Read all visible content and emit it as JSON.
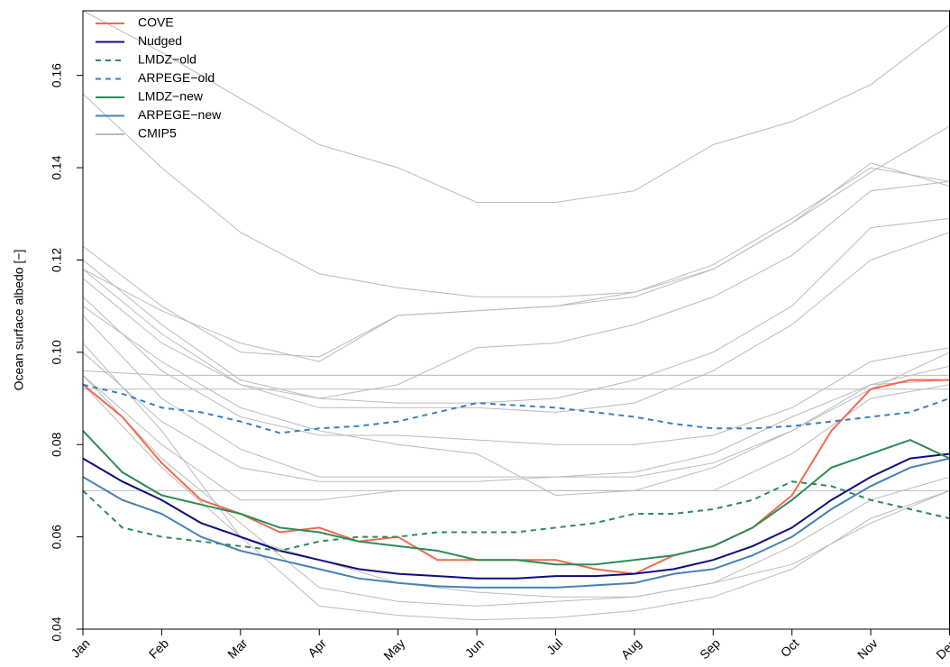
{
  "chart_data": {
    "type": "line",
    "y_label": "Ocean surface albedo [−]",
    "xlim": [
      1,
      12
    ],
    "xticks": [
      {
        "value": 1,
        "label": "Jan"
      },
      {
        "value": 2,
        "label": "Feb"
      },
      {
        "value": 3,
        "label": "Mar"
      },
      {
        "value": 4,
        "label": "Apr"
      },
      {
        "value": 5,
        "label": "May"
      },
      {
        "value": 6,
        "label": "Jun"
      },
      {
        "value": 7,
        "label": "Jul"
      },
      {
        "value": 8,
        "label": "Aug"
      },
      {
        "value": 9,
        "label": "Sep"
      },
      {
        "value": 10,
        "label": "Oct"
      },
      {
        "value": 11,
        "label": "Nov"
      },
      {
        "value": 12,
        "label": "Dec"
      }
    ],
    "ylim": [
      0.04,
      0.174
    ],
    "yticks": [
      0.04,
      0.06,
      0.08,
      {
        "value": 0.1,
        "label": "0.10"
      },
      0.12,
      0.14,
      0.16
    ],
    "legend": "top-left",
    "x": [
      1,
      1.5,
      2,
      2.5,
      3,
      3.5,
      4,
      4.5,
      5,
      5.5,
      6,
      6.5,
      7,
      7.5,
      8,
      8.5,
      9,
      9.5,
      10,
      10.5,
      11,
      11.5,
      12
    ],
    "series": [
      {
        "name": "COVE",
        "color": "#f4694b",
        "dash": false,
        "values": [
          0.093,
          0.086,
          0.076,
          0.068,
          0.065,
          0.061,
          0.062,
          0.059,
          0.06,
          0.055,
          0.055,
          0.055,
          0.055,
          0.053,
          0.052,
          0.056,
          0.058,
          0.062,
          0.069,
          0.083,
          0.092,
          0.094,
          0.094
        ]
      },
      {
        "name": "Nudged",
        "color": "#0d0d80",
        "dash": false,
        "values": [
          0.077,
          0.072,
          0.068,
          0.063,
          0.06,
          0.057,
          0.055,
          0.053,
          0.052,
          0.0515,
          0.051,
          0.051,
          0.0515,
          0.0515,
          0.052,
          0.053,
          0.055,
          0.058,
          0.062,
          0.068,
          0.073,
          0.077,
          0.078
        ]
      },
      {
        "name": "LMDZ−old",
        "color": "#2e8b57",
        "dash": true,
        "values": [
          0.07,
          0.062,
          0.06,
          0.059,
          0.058,
          0.057,
          0.059,
          0.06,
          0.06,
          0.061,
          0.061,
          0.061,
          0.062,
          0.063,
          0.065,
          0.065,
          0.066,
          0.068,
          0.072,
          0.071,
          0.068,
          0.066,
          0.064
        ]
      },
      {
        "name": "ARPEGE−old",
        "color": "#3a7fc0",
        "dash": true,
        "values": [
          0.093,
          0.091,
          0.088,
          0.087,
          0.085,
          0.0825,
          0.0835,
          0.084,
          0.085,
          0.087,
          0.089,
          0.0885,
          0.088,
          0.087,
          0.086,
          0.0845,
          0.0835,
          0.0835,
          0.084,
          0.085,
          0.086,
          0.087,
          0.09
        ]
      },
      {
        "name": "LMDZ−new",
        "color": "#2e8b57",
        "dash": false,
        "values": [
          0.083,
          0.074,
          0.069,
          0.067,
          0.065,
          0.062,
          0.061,
          0.059,
          0.058,
          0.057,
          0.055,
          0.055,
          0.054,
          0.054,
          0.055,
          0.056,
          0.058,
          0.062,
          0.068,
          0.075,
          0.078,
          0.081,
          0.077
        ]
      },
      {
        "name": "ARPEGE−new",
        "color": "#4682b4",
        "dash": false,
        "values": [
          0.073,
          0.068,
          0.065,
          0.06,
          0.057,
          0.055,
          0.053,
          0.051,
          0.05,
          0.0493,
          0.049,
          0.049,
          0.049,
          0.0495,
          0.05,
          0.052,
          0.053,
          0.056,
          0.06,
          0.066,
          0.071,
          0.075,
          0.077
        ]
      }
    ],
    "ensemble": {
      "name": "CMIP5",
      "color": "#bbbbbb",
      "x": [
        1,
        2,
        3,
        4,
        5,
        6,
        7,
        8,
        9,
        10,
        11,
        12
      ],
      "members": [
        [
          0.174,
          0.165,
          0.155,
          0.145,
          0.14,
          0.1325,
          0.1325,
          0.135,
          0.145,
          0.15,
          0.158,
          0.171
        ],
        [
          0.123,
          0.11,
          0.1,
          0.099,
          0.108,
          0.109,
          0.11,
          0.113,
          0.119,
          0.129,
          0.14,
          0.137
        ],
        [
          0.118,
          0.109,
          0.102,
          0.098,
          0.108,
          0.109,
          0.11,
          0.112,
          0.118,
          0.128,
          0.141,
          0.136
        ],
        [
          0.156,
          0.14,
          0.126,
          0.117,
          0.114,
          0.112,
          0.112,
          0.113,
          0.118,
          0.128,
          0.139,
          0.149
        ],
        [
          0.12,
          0.106,
          0.094,
          0.09,
          0.089,
          0.089,
          0.09,
          0.094,
          0.1,
          0.11,
          0.127,
          0.129
        ],
        [
          0.118,
          0.104,
          0.093,
          0.088,
          0.088,
          0.088,
          0.087,
          0.089,
          0.096,
          0.106,
          0.12,
          0.126
        ],
        [
          0.116,
          0.102,
          0.093,
          0.09,
          0.093,
          0.101,
          0.102,
          0.106,
          0.112,
          0.121,
          0.135,
          0.137
        ],
        [
          0.096,
          0.095,
          0.095,
          0.095,
          0.095,
          0.095,
          0.095,
          0.095,
          0.095,
          0.095,
          0.095,
          0.095
        ],
        [
          0.092,
          0.092,
          0.092,
          0.092,
          0.092,
          0.092,
          0.092,
          0.092,
          0.092,
          0.092,
          0.092,
          0.092
        ],
        [
          0.112,
          0.096,
          0.086,
          0.082,
          0.082,
          0.081,
          0.08,
          0.08,
          0.082,
          0.088,
          0.098,
          0.101
        ],
        [
          0.108,
          0.09,
          0.079,
          0.073,
          0.073,
          0.073,
          0.073,
          0.073,
          0.076,
          0.083,
          0.093,
          0.097
        ],
        [
          0.1,
          0.085,
          0.075,
          0.072,
          0.072,
          0.072,
          0.073,
          0.074,
          0.078,
          0.086,
          0.093,
          0.094
        ],
        [
          0.095,
          0.08,
          0.068,
          0.068,
          0.07,
          0.07,
          0.07,
          0.07,
          0.07,
          0.078,
          0.09,
          0.093
        ],
        [
          0.102,
          0.083,
          0.06,
          0.055,
          0.05,
          0.048,
          0.047,
          0.047,
          0.05,
          0.058,
          0.068,
          0.073
        ],
        [
          0.095,
          0.077,
          0.063,
          0.049,
          0.046,
          0.045,
          0.046,
          0.047,
          0.05,
          0.054,
          0.063,
          0.07
        ],
        [
          0.093,
          0.075,
          0.06,
          0.045,
          0.043,
          0.042,
          0.0425,
          0.044,
          0.047,
          0.053,
          0.064,
          0.07
        ],
        [
          0.07,
          0.07,
          0.07,
          0.07,
          0.07,
          0.07,
          0.07,
          0.07,
          0.07,
          0.07,
          0.07,
          0.07
        ],
        [
          0.11,
          0.098,
          0.088,
          0.083,
          0.08,
          0.078,
          0.069,
          0.07,
          0.075,
          0.083,
          0.092,
          0.1
        ]
      ]
    }
  }
}
